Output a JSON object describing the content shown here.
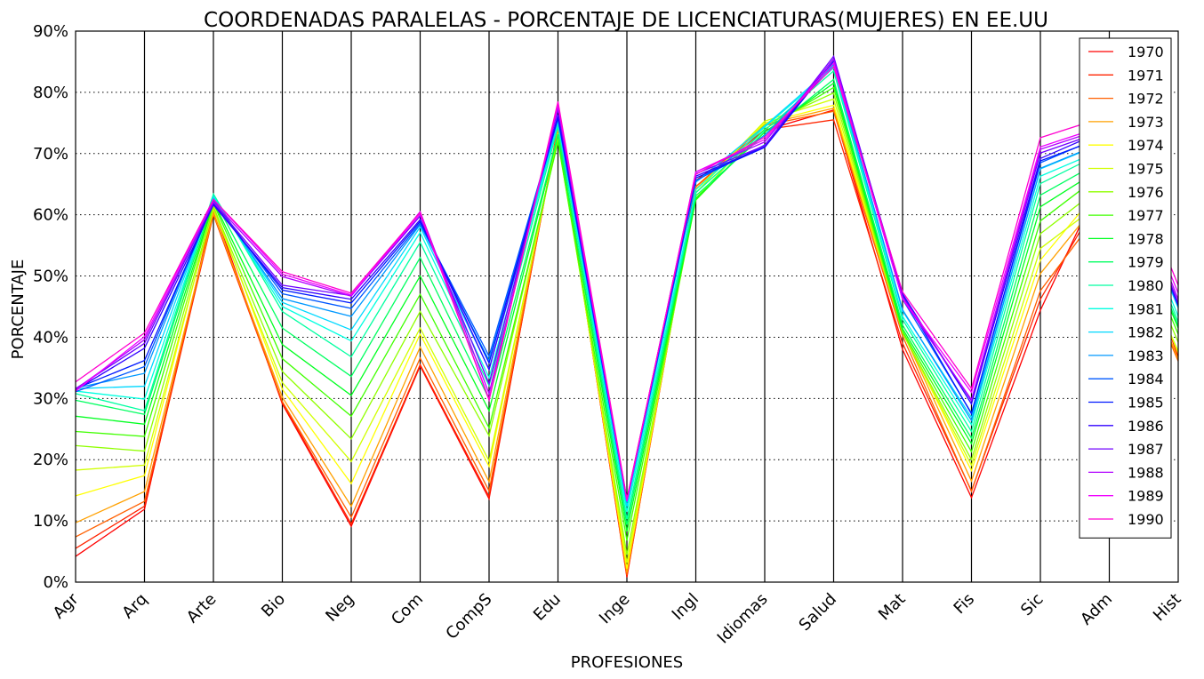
{
  "chart_data": {
    "type": "line",
    "title": "COORDENADAS PARALELAS - PORCENTAJE DE LICENCIATURAS(MUJERES) EN EE.UU",
    "xlabel": "PROFESIONES",
    "ylabel": "PORCENTAJE",
    "ylim": [
      0,
      90
    ],
    "yticks": [
      "0%",
      "10%",
      "20%",
      "30%",
      "40%",
      "50%",
      "60%",
      "70%",
      "80%",
      "90%"
    ],
    "grid": "horizontal dotted",
    "legend_position": "top-right",
    "categories": [
      "Agr",
      "Arq",
      "Arte",
      "Bio",
      "Neg",
      "Com",
      "CompS",
      "Edu",
      "Inge",
      "Ingl",
      "Idiomas",
      "Salud",
      "Mat",
      "Fis",
      "Sic",
      "Adm",
      "Hist"
    ],
    "series": [
      {
        "name": "1970",
        "color": "#ff0000",
        "values": [
          4.2,
          11.9,
          61.2,
          29.1,
          9.1,
          35.3,
          13.6,
          74.5,
          0.8,
          65.6,
          73.8,
          77.1,
          38.0,
          13.8,
          44.4,
          68.4,
          36.8
        ]
      },
      {
        "name": "1971",
        "color": "#ff2400",
        "values": [
          5.5,
          12.4,
          60.0,
          29.4,
          9.5,
          35.5,
          14.0,
          74.2,
          1.0,
          64.6,
          73.9,
          75.5,
          39.0,
          14.9,
          46.2,
          65.5,
          36.2
        ]
      },
      {
        "name": "1972",
        "color": "#ff6000",
        "values": [
          7.4,
          13.2,
          60.4,
          29.5,
          10.6,
          36.6,
          14.9,
          74.1,
          1.2,
          64.6,
          74.6,
          76.9,
          40.2,
          14.8,
          47.6,
          62.6,
          36.1
        ]
      },
      {
        "name": "1973",
        "color": "#ffa000",
        "values": [
          9.7,
          14.8,
          60.2,
          30.2,
          12.4,
          38.4,
          16.4,
          73.9,
          1.6,
          64.2,
          74.8,
          77.4,
          40.9,
          16.5,
          50.4,
          64.3,
          36.4
        ]
      },
      {
        "name": "1974",
        "color": "#ffff00",
        "values": [
          14.1,
          17.4,
          61.5,
          31.5,
          16.1,
          40.5,
          18.9,
          73.3,
          2.2,
          64.1,
          75.0,
          77.9,
          41.0,
          18.2,
          52.6,
          66.1,
          37.3
        ]
      },
      {
        "name": "1975",
        "color": "#d0ff00",
        "values": [
          18.3,
          19.1,
          60.9,
          32.6,
          19.7,
          41.5,
          19.8,
          72.8,
          3.2,
          63.6,
          75.3,
          78.9,
          40.7,
          19.1,
          54.5,
          63.0,
          37.7
        ]
      },
      {
        "name": "1976",
        "color": "#90ff00",
        "values": [
          22.3,
          21.4,
          61.3,
          34.4,
          23.4,
          44.2,
          23.9,
          72.2,
          4.5,
          62.7,
          74.7,
          79.9,
          40.7,
          20.0,
          56.9,
          65.6,
          39.2
        ]
      },
      {
        "name": "1977",
        "color": "#40ff00",
        "values": [
          24.6,
          23.8,
          61.9,
          36.5,
          27.1,
          47.0,
          25.2,
          71.9,
          6.8,
          62.4,
          74.0,
          80.8,
          41.0,
          21.3,
          59.0,
          67.6,
          40.5
        ]
      },
      {
        "name": "1978",
        "color": "#00ff20",
        "values": [
          27.1,
          25.8,
          62.2,
          38.8,
          30.5,
          50.0,
          28.0,
          73.0,
          8.3,
          62.6,
          73.5,
          81.5,
          41.4,
          22.6,
          61.3,
          68.4,
          41.5
        ]
      },
      {
        "name": "1979",
        "color": "#00ff60",
        "values": [
          29.7,
          27.4,
          62.7,
          41.5,
          33.6,
          53.0,
          29.9,
          73.2,
          9.4,
          63.1,
          73.1,
          82.1,
          42.0,
          23.5,
          63.2,
          69.5,
          41.9
        ]
      },
      {
        "name": "1980",
        "color": "#00ffa0",
        "values": [
          30.8,
          28.0,
          63.4,
          44.2,
          36.8,
          55.5,
          32.1,
          74.4,
          10.3,
          63.6,
          73.8,
          83.5,
          42.9,
          24.6,
          65.1,
          70.7,
          42.5
        ]
      },
      {
        "name": "1981",
        "color": "#00ffe0",
        "values": [
          31.2,
          29.9,
          63.0,
          45.0,
          39.4,
          57.1,
          33.4,
          75.0,
          11.5,
          64.1,
          74.3,
          84.0,
          43.4,
          25.7,
          66.3,
          71.1,
          43.4
        ]
      },
      {
        "name": "1982",
        "color": "#00d8ff",
        "values": [
          31.6,
          32.0,
          62.9,
          45.7,
          41.2,
          58.0,
          34.8,
          75.3,
          12.4,
          65.3,
          74.5,
          84.3,
          44.3,
          26.9,
          67.5,
          72.1,
          44.8
        ]
      },
      {
        "name": "1983",
        "color": "#0098ff",
        "values": [
          31.7,
          34.1,
          62.5,
          46.3,
          43.4,
          58.4,
          36.2,
          75.7,
          13.1,
          65.4,
          73.0,
          84.6,
          44.5,
          26.4,
          67.6,
          72.2,
          45.0
        ]
      },
      {
        "name": "1984",
        "color": "#0058ff",
        "values": [
          31.1,
          35.2,
          62.4,
          47.1,
          44.7,
          58.6,
          36.9,
          76.0,
          13.3,
          65.6,
          71.4,
          85.0,
          46.2,
          27.6,
          68.5,
          73.3,
          45.1
        ]
      },
      {
        "name": "1985",
        "color": "#0018ff",
        "values": [
          31.6,
          36.2,
          61.8,
          47.7,
          45.6,
          58.9,
          35.8,
          75.8,
          13.3,
          66.0,
          71.0,
          85.1,
          46.9,
          27.5,
          68.8,
          73.0,
          45.4
        ]
      },
      {
        "name": "1986",
        "color": "#3000ff",
        "values": [
          31.4,
          38.2,
          61.6,
          48.1,
          46.2,
          59.2,
          34.7,
          76.3,
          13.5,
          66.3,
          71.1,
          85.5,
          47.1,
          29.1,
          69.2,
          74.1,
          45.3
        ]
      },
      {
        "name": "1987",
        "color": "#7000ff",
        "values": [
          31.6,
          39.0,
          62.0,
          48.5,
          46.8,
          59.8,
          32.4,
          77.2,
          13.5,
          66.7,
          71.3,
          85.9,
          46.7,
          29.6,
          70.1,
          74.0,
          45.6
        ]
      },
      {
        "name": "1988",
        "color": "#b000ff",
        "values": [
          31.5,
          39.6,
          62.1,
          49.9,
          46.7,
          60.5,
          30.8,
          77.6,
          13.3,
          67.0,
          71.9,
          85.4,
          46.2,
          29.8,
          70.7,
          74.4,
          46.2
        ]
      },
      {
        "name": "1989",
        "color": "#f000ff",
        "values": [
          31.2,
          40.1,
          62.5,
          50.3,
          46.9,
          60.1,
          29.9,
          78.1,
          13.2,
          67.0,
          72.3,
          84.8,
          46.3,
          31.0,
          71.1,
          74.8,
          47.2
        ]
      },
      {
        "name": "1990",
        "color": "#ff00d0",
        "values": [
          32.7,
          40.7,
          62.5,
          50.7,
          47.2,
          60.4,
          29.7,
          78.5,
          13.6,
          66.6,
          72.7,
          84.2,
          47.4,
          31.6,
          72.6,
          76.2,
          48.5
        ]
      }
    ]
  }
}
